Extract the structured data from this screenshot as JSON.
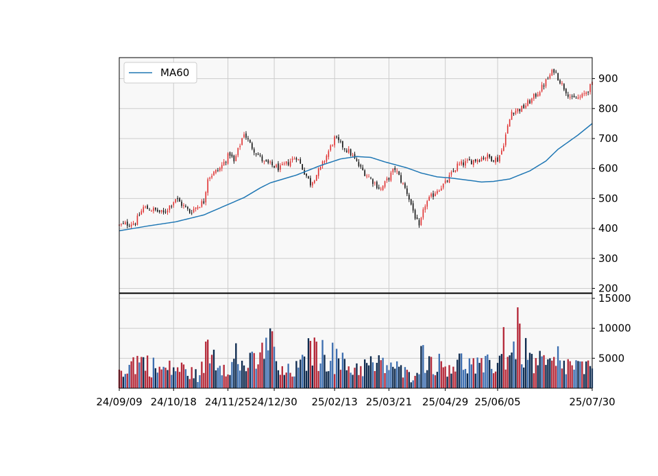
{
  "chart_data": {
    "type": "candlestick-with-volume",
    "legend": {
      "placement": "top-left",
      "label": "MA60"
    },
    "grid": true,
    "colors": {
      "up": "#e03030",
      "down": "#111111",
      "ma": "#1f77b4",
      "vol_a": "#0d2a4e",
      "vol_b": "#b52a3a",
      "vol_c": "#3e6fb0",
      "panel_bg": "#f8f8f8",
      "grid": "#cccccc"
    },
    "price_axis": {
      "ylim": [
        185,
        970
      ],
      "ticks": [
        200,
        300,
        400,
        500,
        600,
        700,
        800,
        900
      ]
    },
    "volume_axis": {
      "ylim": [
        0,
        15800
      ],
      "ticks": [
        5000,
        10000,
        15000
      ]
    },
    "x_ticks": [
      "24/09/09",
      "24/10/18",
      "24/11/25",
      "24/12/30",
      "25/02/13",
      "25/03/21",
      "25/04/29",
      "25/06/05",
      "25/07/30"
    ],
    "x_tick_positions": [
      0,
      27,
      54,
      77,
      107,
      134,
      162,
      188,
      235
    ],
    "n_sessions": 236,
    "price_anchors": [
      [
        0,
        410
      ],
      [
        8,
        420
      ],
      [
        12,
        470
      ],
      [
        18,
        460
      ],
      [
        22,
        450
      ],
      [
        28,
        500
      ],
      [
        35,
        455
      ],
      [
        42,
        490
      ],
      [
        44,
        570
      ],
      [
        50,
        600
      ],
      [
        55,
        650
      ],
      [
        57,
        620
      ],
      [
        62,
        720
      ],
      [
        65,
        680
      ],
      [
        72,
        620
      ],
      [
        80,
        600
      ],
      [
        88,
        640
      ],
      [
        95,
        550
      ],
      [
        100,
        600
      ],
      [
        107,
        700
      ],
      [
        115,
        650
      ],
      [
        120,
        600
      ],
      [
        130,
        530
      ],
      [
        137,
        600
      ],
      [
        143,
        520
      ],
      [
        149,
        400
      ],
      [
        152,
        480
      ],
      [
        158,
        530
      ],
      [
        162,
        550
      ],
      [
        168,
        610
      ],
      [
        175,
        625
      ],
      [
        182,
        640
      ],
      [
        188,
        630
      ],
      [
        190,
        660
      ],
      [
        195,
        790
      ],
      [
        200,
        800
      ],
      [
        205,
        830
      ],
      [
        210,
        870
      ],
      [
        216,
        930
      ],
      [
        220,
        880
      ],
      [
        225,
        830
      ],
      [
        230,
        840
      ],
      [
        235,
        880
      ]
    ],
    "ma60_anchors": [
      [
        0,
        392
      ],
      [
        14,
        408
      ],
      [
        28,
        422
      ],
      [
        42,
        445
      ],
      [
        62,
        503
      ],
      [
        70,
        535
      ],
      [
        75,
        552
      ],
      [
        88,
        578
      ],
      [
        100,
        610
      ],
      [
        110,
        632
      ],
      [
        118,
        640
      ],
      [
        125,
        637
      ],
      [
        132,
        622
      ],
      [
        143,
        602
      ],
      [
        150,
        585
      ],
      [
        158,
        572
      ],
      [
        165,
        568
      ],
      [
        172,
        562
      ],
      [
        180,
        555
      ],
      [
        186,
        557
      ],
      [
        194,
        565
      ],
      [
        204,
        592
      ],
      [
        212,
        625
      ],
      [
        218,
        664
      ],
      [
        228,
        712
      ],
      [
        235,
        750
      ]
    ],
    "volume_anchors": [
      [
        0,
        3000
      ],
      [
        10,
        5000
      ],
      [
        20,
        3200
      ],
      [
        30,
        3500
      ],
      [
        40,
        2000
      ],
      [
        44,
        7000
      ],
      [
        50,
        4500
      ],
      [
        60,
        4000
      ],
      [
        70,
        4500
      ],
      [
        73,
        9500
      ],
      [
        80,
        2500
      ],
      [
        90,
        3500
      ],
      [
        95,
        6500
      ],
      [
        107,
        5000
      ],
      [
        115,
        3500
      ],
      [
        125,
        4000
      ],
      [
        135,
        4000
      ],
      [
        145,
        2000
      ],
      [
        150,
        5500
      ],
      [
        160,
        4000
      ],
      [
        170,
        4500
      ],
      [
        180,
        3500
      ],
      [
        190,
        5000
      ],
      [
        198,
        8000
      ],
      [
        205,
        4500
      ],
      [
        215,
        4000
      ],
      [
        225,
        4000
      ],
      [
        235,
        3000
      ]
    ],
    "volume_spikes": [
      [
        76,
        9500
      ],
      [
        191,
        10200
      ],
      [
        198,
        13500
      ],
      [
        58,
        7500
      ],
      [
        106,
        7600
      ],
      [
        95,
        7900
      ],
      [
        218,
        7000
      ]
    ],
    "bar_label": "MA60"
  }
}
